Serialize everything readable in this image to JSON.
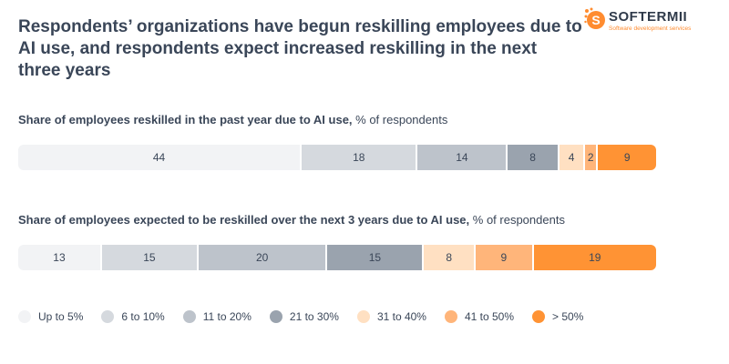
{
  "title": "Respondents’ organizations have begun reskilling employees due to AI use, and respondents expect increased reskilling in the next three years",
  "logo": {
    "brand": "SOFTERMII",
    "tagline": "Software development services",
    "letter": "S"
  },
  "colors": {
    "up_to_5": "#f2f3f5",
    "6_to_10": "#d5d9de",
    "11_to_20": "#bdc3cb",
    "21_to_30": "#9aa3ae",
    "31_to_40": "#ffe0c2",
    "41_to_50": "#ffb57a",
    "over_50": "#ff9334"
  },
  "chart_data": [
    {
      "type": "bar",
      "orientation": "horizontal-stacked",
      "title_bold": "Share of employees reskilled in the past year due to AI use,",
      "title_rest": " % of respondents",
      "categories": [
        "Up to 5%",
        "6 to 10%",
        "11 to 20%",
        "21 to 30%",
        "31 to 40%",
        "41 to 50%",
        "> 50%"
      ],
      "values": [
        44,
        18,
        14,
        8,
        4,
        2,
        9
      ],
      "unit": "% of respondents"
    },
    {
      "type": "bar",
      "orientation": "horizontal-stacked",
      "title_bold": "Share of employees expected to be reskilled over the next 3 years due to AI use,",
      "title_rest": " % of respondents",
      "categories": [
        "Up to 5%",
        "6 to 10%",
        "11 to 20%",
        "21 to 30%",
        "31 to 40%",
        "41 to 50%",
        "> 50%"
      ],
      "values": [
        13,
        15,
        20,
        15,
        8,
        9,
        19
      ],
      "unit": "% of respondents"
    }
  ],
  "legend": [
    {
      "label": "Up to 5%",
      "color": "#f2f3f5"
    },
    {
      "label": "6 to 10%",
      "color": "#d5d9de"
    },
    {
      "label": "11 to 20%",
      "color": "#bdc3cb"
    },
    {
      "label": "21 to 30%",
      "color": "#9aa3ae"
    },
    {
      "label": "31 to 40%",
      "color": "#ffe0c2"
    },
    {
      "label": "41 to 50%",
      "color": "#ffb57a"
    },
    {
      "label": "> 50%",
      "color": "#ff9334"
    }
  ]
}
